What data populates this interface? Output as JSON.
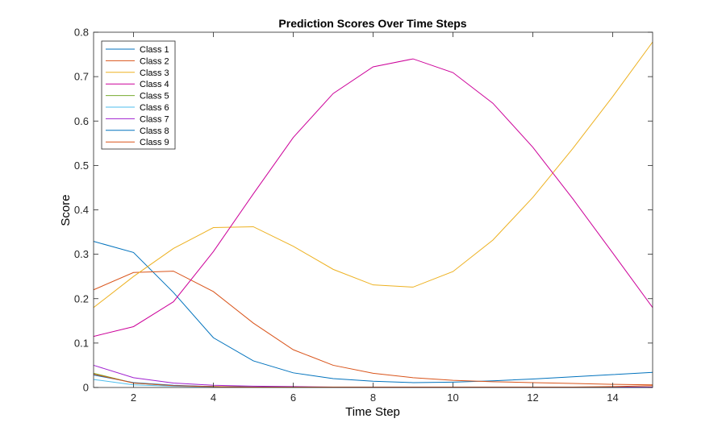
{
  "chart_data": {
    "type": "line",
    "title": "Prediction Scores Over Time Steps",
    "xlabel": "Time Step",
    "ylabel": "Score",
    "xlim": [
      1,
      15
    ],
    "ylim": [
      0,
      0.8
    ],
    "xticks": [
      2,
      4,
      6,
      8,
      10,
      12,
      14
    ],
    "yticks": [
      0,
      0.1,
      0.2,
      0.3,
      0.4,
      0.5,
      0.6,
      0.7,
      0.8
    ],
    "xtick_labels": [
      "2",
      "4",
      "6",
      "8",
      "10",
      "12",
      "14"
    ],
    "ytick_labels": [
      "0",
      "0.1",
      "0.2",
      "0.3",
      "0.4",
      "0.5",
      "0.6",
      "0.7",
      "0.8"
    ],
    "grid": false,
    "legend": "top-left",
    "x": [
      1,
      2,
      3,
      4,
      5,
      6,
      7,
      8,
      9,
      10,
      11,
      12,
      13,
      14,
      15
    ],
    "series": [
      {
        "name": "Class 1",
        "color": "#0072BD",
        "values": [
          0.329,
          0.304,
          0.214,
          0.112,
          0.06,
          0.033,
          0.02,
          0.014,
          0.011,
          0.012,
          0.015,
          0.019,
          0.024,
          0.029,
          0.034
        ]
      },
      {
        "name": "Class 2",
        "color": "#D95319",
        "values": [
          0.22,
          0.259,
          0.262,
          0.216,
          0.145,
          0.085,
          0.05,
          0.032,
          0.022,
          0.016,
          0.013,
          0.011,
          0.009,
          0.007,
          0.006
        ]
      },
      {
        "name": "Class 3",
        "color": "#EDB120",
        "values": [
          0.18,
          0.25,
          0.313,
          0.36,
          0.362,
          0.318,
          0.266,
          0.231,
          0.226,
          0.261,
          0.332,
          0.428,
          0.538,
          0.655,
          0.778
        ]
      },
      {
        "name": "Class 4",
        "color": "#CC0099",
        "values": [
          0.115,
          0.137,
          0.193,
          0.306,
          0.436,
          0.563,
          0.662,
          0.722,
          0.74,
          0.709,
          0.64,
          0.541,
          0.425,
          0.303,
          0.18
        ]
      },
      {
        "name": "Class 5",
        "color": "#77AC30",
        "values": [
          0.032,
          0.01,
          0.004,
          0.002,
          0.001,
          0.001,
          0.0,
          0.0,
          0.0,
          0.0,
          0.0,
          0.0,
          0.0,
          0.0,
          0.0
        ]
      },
      {
        "name": "Class 6",
        "color": "#4DBEEE",
        "values": [
          0.018,
          0.006,
          0.003,
          0.001,
          0.001,
          0.0,
          0.0,
          0.0,
          0.0,
          0.0,
          0.0,
          0.0,
          0.0,
          0.0,
          0.0
        ]
      },
      {
        "name": "Class 7",
        "color": "#A020D0",
        "values": [
          0.05,
          0.022,
          0.01,
          0.005,
          0.003,
          0.002,
          0.001,
          0.001,
          0.001,
          0.001,
          0.001,
          0.001,
          0.001,
          0.001,
          0.001
        ]
      },
      {
        "name": "Class 8",
        "color": "#0072BD",
        "values": [
          0.028,
          0.011,
          0.005,
          0.002,
          0.001,
          0.001,
          0.001,
          0.0,
          0.0,
          0.0,
          0.0,
          0.0,
          0.0,
          0.0,
          0.0
        ]
      },
      {
        "name": "Class 9",
        "color": "#D95319",
        "values": [
          0.03,
          0.01,
          0.004,
          0.002,
          0.001,
          0.001,
          0.001,
          0.001,
          0.001,
          0.001,
          0.001,
          0.001,
          0.001,
          0.002,
          0.004
        ]
      }
    ]
  }
}
